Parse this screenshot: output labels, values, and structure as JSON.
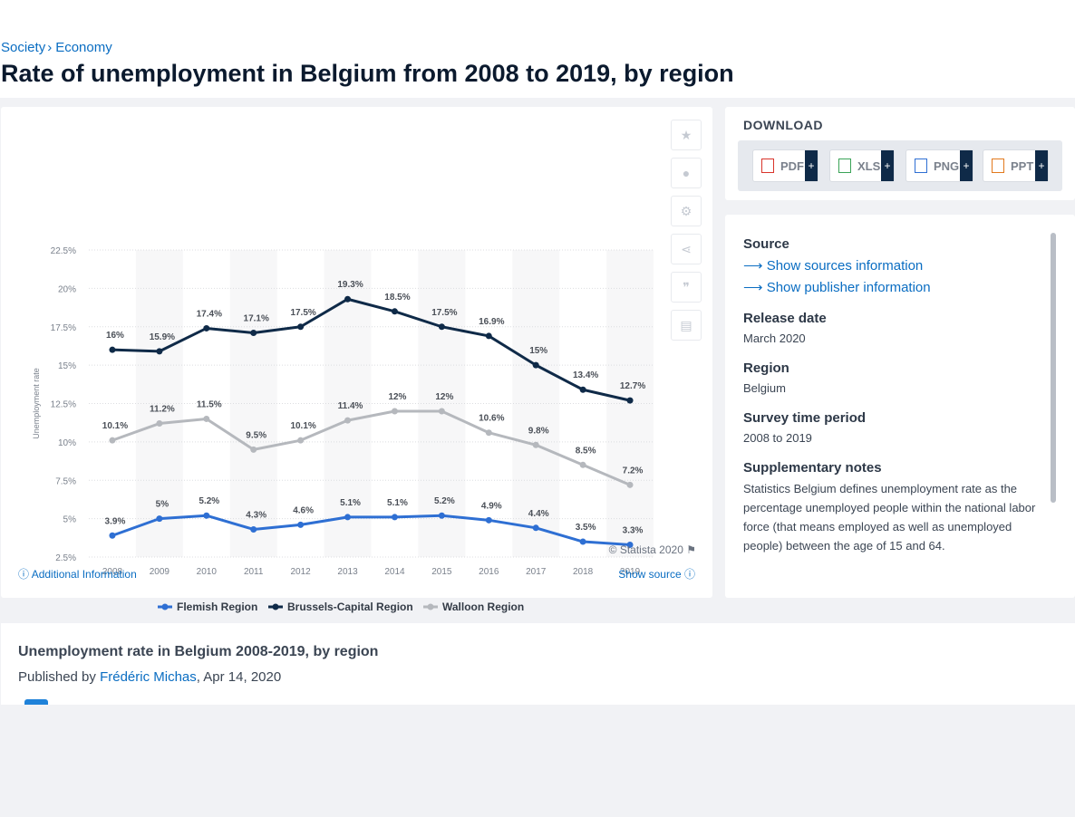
{
  "breadcrumb": {
    "items": [
      "Society",
      "Economy"
    ]
  },
  "page_title": "Rate of unemployment in Belgium from 2008 to 2019, by region",
  "chart_data": {
    "type": "line",
    "title": "",
    "ylabel": "Unemployment rate",
    "xlabel": "",
    "x": [
      "2008",
      "2009",
      "2010",
      "2011",
      "2012",
      "2013",
      "2014",
      "2015",
      "2016",
      "2017",
      "2018",
      "2019"
    ],
    "yticks": [
      "2.5%",
      "5%",
      "7.5%",
      "10%",
      "12.5%",
      "15%",
      "17.5%",
      "20%",
      "22.5%"
    ],
    "ylim": [
      2.5,
      22.5
    ],
    "grid": true,
    "legend_position": "bottom",
    "series": [
      {
        "name": "Flemish Region",
        "color": "#2e6fd3",
        "values": [
          3.9,
          5,
          5.2,
          4.3,
          4.6,
          5.1,
          5.1,
          5.2,
          4.9,
          4.4,
          3.5,
          3.3
        ],
        "labels": [
          "3.9%",
          "5%",
          "5.2%",
          "4.3%",
          "4.6%",
          "5.1%",
          "5.1%",
          "5.2%",
          "4.9%",
          "4.4%",
          "3.5%",
          "3.3%"
        ]
      },
      {
        "name": "Brussels-Capital Region",
        "color": "#0f2a48",
        "values": [
          16,
          15.9,
          17.4,
          17.1,
          17.5,
          19.3,
          18.5,
          17.5,
          16.9,
          15,
          13.4,
          12.7
        ],
        "labels": [
          "16%",
          "15.9%",
          "17.4%",
          "17.1%",
          "17.5%",
          "19.3%",
          "18.5%",
          "17.5%",
          "16.9%",
          "15%",
          "13.4%",
          "12.7%"
        ]
      },
      {
        "name": "Walloon Region",
        "color": "#b5b8bd",
        "values": [
          10.1,
          11.2,
          11.5,
          9.5,
          10.1,
          11.4,
          12,
          12,
          10.6,
          9.8,
          8.5,
          7.2
        ],
        "labels": [
          "10.1%",
          "11.2%",
          "11.5%",
          "9.5%",
          "10.1%",
          "11.4%",
          "12%",
          "12%",
          "10.6%",
          "9.8%",
          "8.5%",
          "7.2%"
        ]
      }
    ]
  },
  "chart_footer": {
    "copyright": "© Statista 2020",
    "additional_info": "Additional Information",
    "show_source": "Show source"
  },
  "download": {
    "title": "DOWNLOAD",
    "buttons": [
      {
        "label": "PDF",
        "icon": "pdf-file-icon",
        "color": "#d9342b"
      },
      {
        "label": "XLS",
        "icon": "xls-file-icon",
        "color": "#3aa357"
      },
      {
        "label": "PNG",
        "icon": "png-file-icon",
        "color": "#2e6fd3"
      },
      {
        "label": "PPT",
        "icon": "ppt-file-icon",
        "color": "#e2791d"
      }
    ]
  },
  "info": {
    "source_label": "Source",
    "show_sources": "Show sources information",
    "show_publisher": "Show publisher information",
    "release_label": "Release date",
    "release_value": "March 2020",
    "region_label": "Region",
    "region_value": "Belgium",
    "survey_label": "Survey time period",
    "survey_value": "2008 to 2019",
    "notes_label": "Supplementary notes",
    "notes_value": "Statistics Belgium defines unemployment rate as the percentage unemployed people within the national labor force (that means employed as well as unemployed people) between the age of 15 and 64."
  },
  "publication": {
    "title": "Unemployment rate in Belgium 2008-2019, by region",
    "published_by": "Published by",
    "author": "Frédéric Michas",
    "date": ", Apr 14, 2020"
  }
}
